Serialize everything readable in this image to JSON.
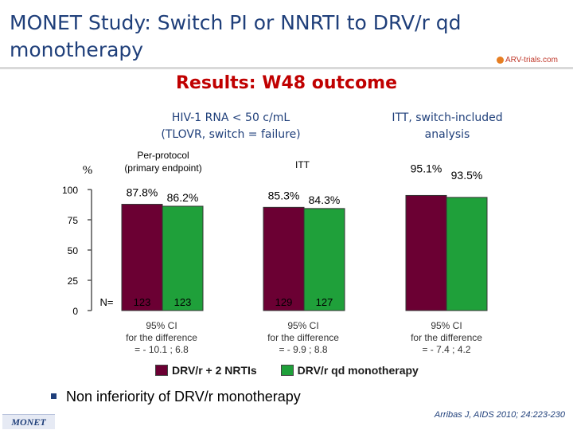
{
  "header": {
    "title": "MONET Study: Switch PI or NNRTI to DRV/r qd monotherapy",
    "logo_text": "ARV-trials.com"
  },
  "subtitle": "Results: W48 outcome",
  "groups": {
    "hiv_rna_header_line1": "HIV-1 RNA < 50 c/mL",
    "hiv_rna_header_line2": "(TLOVR, switch = failure)",
    "itt_switch_header_line1": "ITT, switch-included",
    "itt_switch_header_line2": "analysis",
    "per_protocol_line1": "Per-protocol",
    "per_protocol_line2": "(primary endpoint)",
    "itt_label": "ITT"
  },
  "chart_data": {
    "type": "bar",
    "ylabel": "%",
    "ylim": [
      0,
      100
    ],
    "yticks": [
      "0",
      "25",
      "50",
      "75",
      "100"
    ],
    "categories": [
      "Per-protocol (primary endpoint)",
      "ITT",
      "ITT, switch-included analysis"
    ],
    "series": [
      {
        "name": "DRV/r + 2 NRTIs",
        "color": "#6b0033",
        "values": [
          87.8,
          85.3,
          95.1
        ],
        "labels": [
          "87.8%",
          "85.3%",
          "95.1%"
        ]
      },
      {
        "name": "DRV/r qd monotherapy",
        "color": "#1fa03a",
        "values": [
          86.2,
          84.3,
          93.5
        ],
        "labels": [
          "86.2%",
          "84.3%",
          "93.5%"
        ]
      }
    ],
    "n_prefix": "N=",
    "n_values": [
      [
        "123",
        "123"
      ],
      [
        "129",
        "127"
      ],
      [
        null,
        null
      ]
    ],
    "ci_notes": [
      {
        "line1": "95% CI",
        "line2": "for the difference",
        "line3": "= - 10.1 ; 6.8"
      },
      {
        "line1": "95% CI",
        "line2": "for the difference",
        "line3": "= - 9.9 ; 8.8"
      },
      {
        "line1": "95% CI",
        "line2": "for the difference",
        "line3": "= - 7.4 ; 4.2"
      }
    ]
  },
  "legend": {
    "item1": "DRV/r + 2 NRTIs",
    "item2": "DRV/r qd monotherapy"
  },
  "bullet": "Non inferiority of DRV/r monotherapy",
  "footer": {
    "study_tag": "MONET",
    "reference": "Arribas J, AIDS 2010; 24:223-230"
  }
}
